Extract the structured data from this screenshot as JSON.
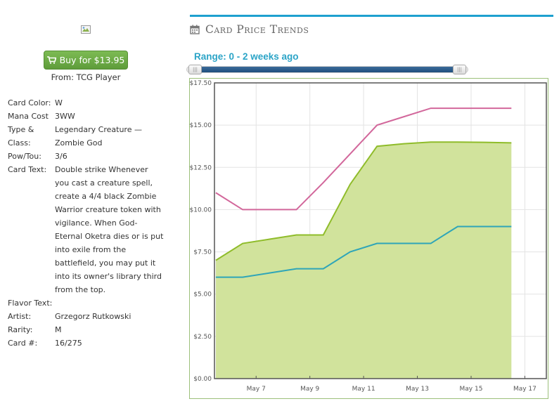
{
  "sidebar": {
    "buy_label": "Buy for $13.95",
    "from_label": "From: TCG Player",
    "details": [
      {
        "label": "Card Color:",
        "value": "W"
      },
      {
        "label": "Mana Cost",
        "value": "3WW"
      },
      {
        "label": "Type & Class:",
        "value": "Legendary Creature — Zombie God"
      },
      {
        "label": "Pow/Tou:",
        "value": "3/6"
      },
      {
        "label": "Card Text:",
        "value": "Double strike Whenever you cast a creature spell, create a 4/4 black Zombie Warrior creature token with vigilance. When God-Eternal Oketra dies or is put into exile from the battlefield, you may put it into its owner's library third from the top."
      },
      {
        "label": "Flavor Text:",
        "value": ""
      },
      {
        "label": "Artist:",
        "value": "Grzegorz Rutkowski"
      },
      {
        "label": "Rarity:",
        "value": "M"
      },
      {
        "label": "Card #:",
        "value": "16/275"
      }
    ]
  },
  "header": {
    "title": "Card Price Trends",
    "range_label": "Range: 0 - 2 weeks ago",
    "accent_color": "#1ea0cf"
  },
  "slider": {
    "min_fraction": 0.0,
    "max_fraction": 1.0
  },
  "icons": {
    "cart": "shopping-cart-icon",
    "calendar": "calendar-icon",
    "image": "broken-image-icon"
  },
  "chart_data": {
    "type": "line",
    "x": [
      0,
      1,
      2,
      3,
      4,
      5,
      6,
      7,
      8,
      9,
      10,
      11,
      12
    ],
    "x_tick_positions": [
      1.5,
      3.5,
      5.5,
      7.5,
      9.5,
      11.5
    ],
    "x_tick_labels": [
      "May 7",
      "May 9",
      "May 11",
      "May 13",
      "May 15",
      "May 17"
    ],
    "ylim": [
      0,
      17.5
    ],
    "y_ticks": [
      0,
      2.5,
      5,
      7.5,
      10,
      12.5,
      15,
      17.5
    ],
    "y_tick_labels": [
      "$0.00",
      "$2.50",
      "$5.00",
      "$7.50",
      "$10.00",
      "$12.50",
      "$15.00",
      "$17.50"
    ],
    "grid": true,
    "series": [
      {
        "color": "#d2679b",
        "values": [
          11.0,
          10.0,
          10.0,
          10.0,
          11.6,
          13.3,
          15.0,
          15.5,
          16.0,
          16.0,
          16.0,
          16.0,
          null
        ],
        "fill": false
      },
      {
        "color": "#8fbc2a",
        "values": [
          7.0,
          8.0,
          8.25,
          8.5,
          8.5,
          11.5,
          13.75,
          13.9,
          14.0,
          14.0,
          13.98,
          13.95,
          null
        ],
        "fill": true,
        "fill_color": "#d1e39c"
      },
      {
        "color": "#2ea5b8",
        "values": [
          6.0,
          6.0,
          6.25,
          6.5,
          6.5,
          7.5,
          8.0,
          8.0,
          8.0,
          9.0,
          9.0,
          9.0,
          null
        ],
        "fill": false
      }
    ]
  }
}
